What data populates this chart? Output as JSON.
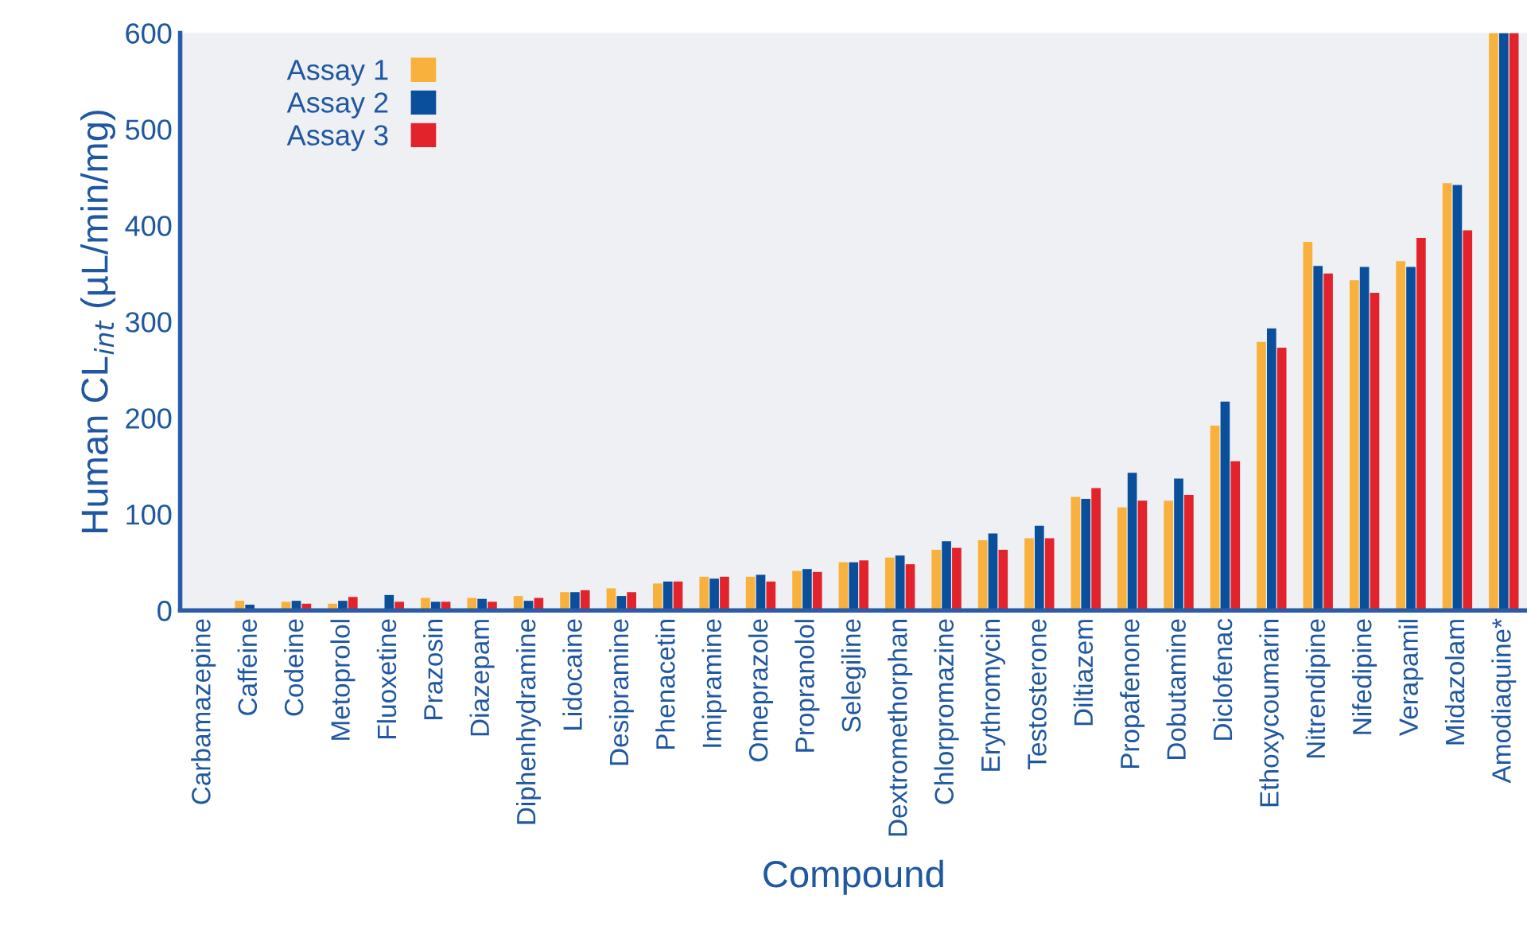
{
  "chart_data": {
    "type": "bar",
    "xlabel": "Compound",
    "ylabel": "Human CL$_{int}$ (µL/min/mg)",
    "categories": [
      "Carbamazepine",
      "Caffeine",
      "Codeine",
      "Metoprolol",
      "Fluoxetine",
      "Prazosin",
      "Diazepam",
      "Diphenhydramine",
      "Lidocaine",
      "Desipramine",
      "Phenacetin",
      "Imipramine",
      "Omeprazole",
      "Propranolol",
      "Selegiline",
      "Dextromethorphan",
      "Chlorpromazine",
      "Erythromycin",
      "Testosterone",
      "Diltiazem",
      "Propafenone",
      "Dobutamine",
      "Diclofenac",
      "Ethoxycoumarin",
      "Nitrendipine",
      "Nifedipine",
      "Verapamil",
      "Midazolam",
      "Amodiaquine*"
    ],
    "series": [
      {
        "name": "Assay 1",
        "color": "#f9b13d",
        "values": [
          null,
          10,
          9,
          7,
          null,
          13,
          13,
          15,
          19,
          23,
          28,
          35,
          35,
          41,
          50,
          55,
          63,
          73,
          75,
          118,
          107,
          114,
          192,
          279,
          383,
          343,
          363,
          444,
          600
        ]
      },
      {
        "name": "Assay 2",
        "color": "#0a4f9c",
        "values": [
          null,
          6,
          10,
          10,
          16,
          9,
          12,
          10,
          19,
          15,
          30,
          33,
          37,
          43,
          50,
          57,
          72,
          80,
          88,
          116,
          143,
          137,
          217,
          293,
          358,
          357,
          357,
          442,
          600
        ]
      },
      {
        "name": "Assay 3",
        "color": "#e2232b",
        "values": [
          null,
          null,
          7,
          14,
          9,
          9,
          9,
          13,
          21,
          19,
          30,
          35,
          30,
          40,
          52,
          48,
          65,
          63,
          75,
          127,
          114,
          120,
          155,
          273,
          350,
          330,
          387,
          395,
          600
        ]
      }
    ],
    "ylim": [
      0,
      600
    ],
    "yticks": [
      0,
      100,
      200,
      300,
      400,
      500,
      600
    ],
    "grid": false,
    "legend": "top left"
  }
}
